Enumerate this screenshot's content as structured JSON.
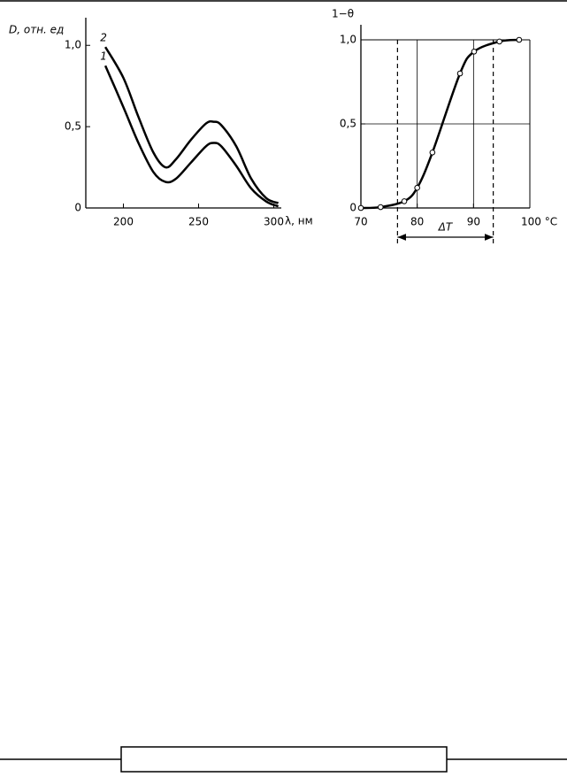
{
  "chart_data": [
    {
      "type": "line",
      "y_label": "D, отн. ед",
      "x_label": "λ, нм",
      "x": [
        188,
        200,
        210,
        220,
        228,
        235,
        245,
        255,
        260,
        265,
        275,
        285,
        295,
        303
      ],
      "series": [
        {
          "name": "1",
          "color": "#000000",
          "values": [
            0.875,
            0.62,
            0.4,
            0.22,
            0.16,
            0.18,
            0.28,
            0.38,
            0.4,
            0.38,
            0.26,
            0.12,
            0.04,
            0.01
          ]
        },
        {
          "name": "2",
          "color": "#000000",
          "values": [
            0.99,
            0.8,
            0.56,
            0.34,
            0.25,
            0.3,
            0.42,
            0.52,
            0.53,
            0.51,
            0.38,
            0.18,
            0.06,
            0.03
          ]
        }
      ],
      "xlim": [
        175,
        305
      ],
      "ylim": [
        0,
        1.17
      ],
      "xticks": [
        200,
        250,
        300
      ],
      "yticks": [
        0,
        {
          "value": 0.5,
          "label": "0,5"
        },
        {
          "value": 1.0,
          "label": "1,0"
        }
      ],
      "grid": false,
      "markers": false
    },
    {
      "type": "line",
      "y_label": "1−θ",
      "annotation": "ΔT",
      "x": [
        70,
        73.5,
        77.7,
        80,
        82.7,
        87.6,
        90.1,
        94.6,
        98.1
      ],
      "series": [
        {
          "color": "#000000",
          "values": [
            0,
            0.005,
            0.04,
            0.12,
            0.33,
            0.8,
            0.93,
            0.99,
            1.0
          ]
        }
      ],
      "range_marks": [
        76.5,
        93.5
      ],
      "xlim": [
        70,
        100
      ],
      "ylim": [
        0,
        1
      ],
      "xticks": [
        70,
        80,
        90,
        {
          "value": 100,
          "label": "100 °C"
        }
      ],
      "yticks": [
        0,
        {
          "value": 0.5,
          "label": "0,5"
        },
        {
          "value": 1.0,
          "label": "1,0"
        }
      ],
      "grid": true,
      "markers": true
    }
  ]
}
